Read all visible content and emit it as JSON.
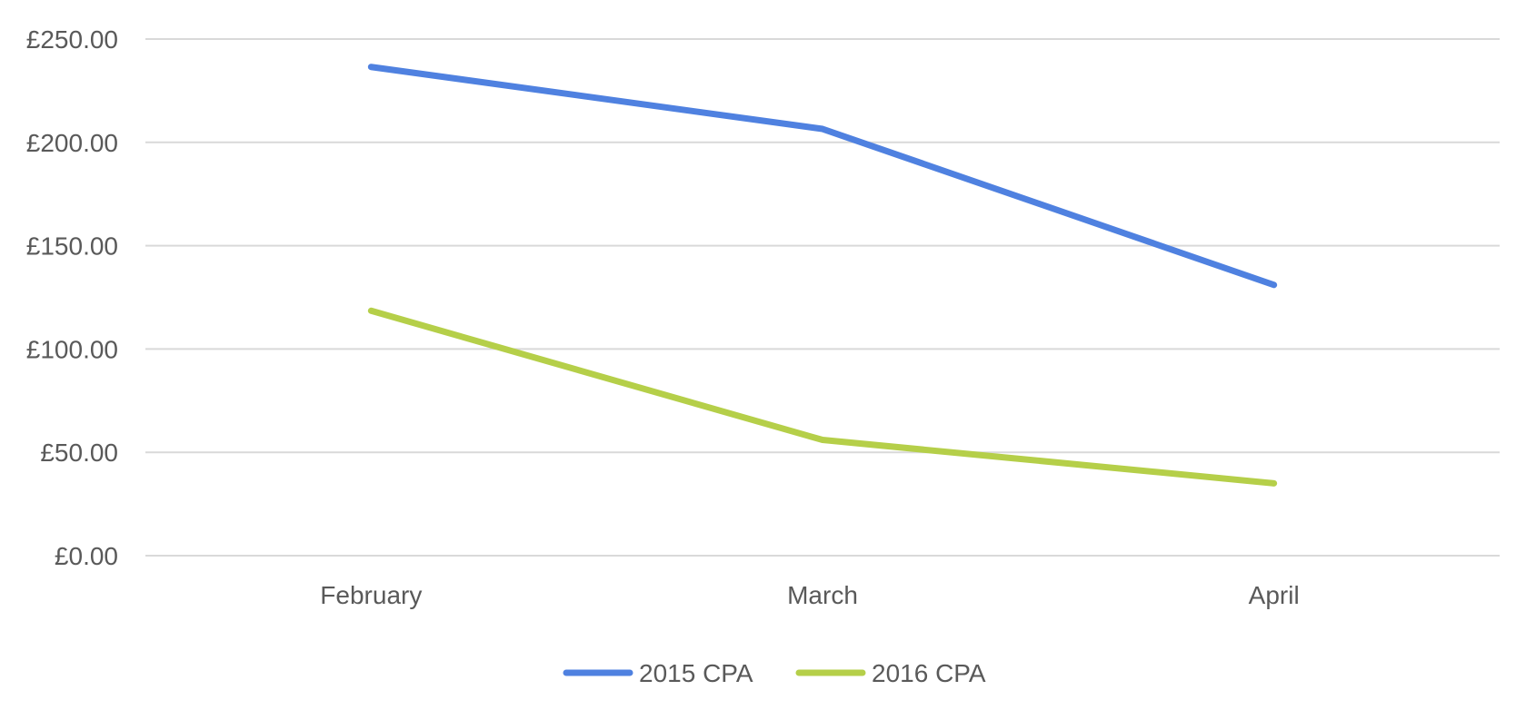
{
  "chart_data": {
    "type": "line",
    "title": "",
    "xlabel": "",
    "ylabel": "",
    "categories": [
      "February",
      "March",
      "April"
    ],
    "ylim": [
      0,
      250
    ],
    "y_ticks": [
      0,
      50,
      100,
      150,
      200,
      250
    ],
    "y_tick_labels": [
      "£0.00",
      "£50.00",
      "£100.00",
      "£150.00",
      "£200.00",
      "£250.00"
    ],
    "grid": true,
    "legend_position": "bottom",
    "series": [
      {
        "name": "2015 CPA",
        "color": "#4f81e0",
        "values": [
          236.5,
          206.5,
          131
        ]
      },
      {
        "name": "2016 CPA",
        "color": "#b5cf49",
        "values": [
          118.5,
          56,
          35
        ]
      }
    ]
  }
}
